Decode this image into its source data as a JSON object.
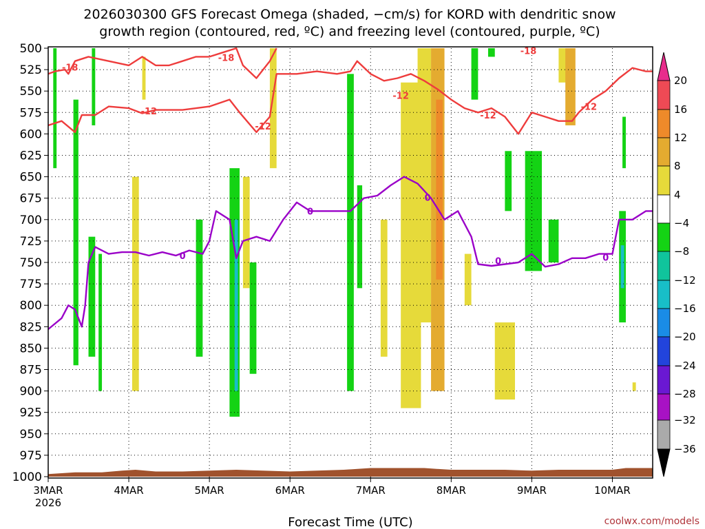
{
  "title_line1": "2026030300 GFS Forecast Omega (shaded, −cm/s) for KORD with dendritic snow",
  "title_line2": "growth region (contoured, red, ºC) and freezing level (contoured, purple, ºC)",
  "credit": "coolwx.com/models",
  "chart_data": {
    "type": "heatmap",
    "title": "2026030300 GFS Forecast Omega (shaded, −cm/s) for KORD with dendritic snow growth region (contoured, red, ºC) and freezing level (contoured, purple, ºC)",
    "xlabel": "Forecast Time (UTC)",
    "ylabel": "",
    "x_range_hours": [
      0,
      180
    ],
    "x_ticks": [
      {
        "hour": 0,
        "label": "3MAR",
        "sublabel": "2026"
      },
      {
        "hour": 24,
        "label": "4MAR"
      },
      {
        "hour": 48,
        "label": "5MAR"
      },
      {
        "hour": 72,
        "label": "6MAR"
      },
      {
        "hour": 96,
        "label": "7MAR"
      },
      {
        "hour": 120,
        "label": "8MAR"
      },
      {
        "hour": 144,
        "label": "9MAR"
      },
      {
        "hour": 168,
        "label": "10MAR"
      }
    ],
    "y_axis": "pressure (hPa), inverted",
    "ylim": [
      1000,
      500
    ],
    "y_ticks": [
      "500",
      "525",
      "550",
      "575",
      "600",
      "625",
      "650",
      "675",
      "700",
      "725",
      "750",
      "775",
      "800",
      "825",
      "850",
      "875",
      "900",
      "925",
      "950",
      "975",
      "1000"
    ],
    "grid": "dotted",
    "colorbar": {
      "labels": [
        "20",
        "16",
        "12",
        "8",
        "4",
        "−4",
        "−8",
        "−12",
        "−16",
        "−20",
        "−24",
        "−28",
        "−32",
        "−36"
      ],
      "colors": {
        "16_20": "#ee4a55",
        "12_16": "#ee8a2a",
        "8_12": "#e4ab30",
        "4_8": "#e6da3a",
        "neutral": "#ffffff",
        "m8_m4": "#14d314",
        "m12_m8": "#10c49c",
        "m16_m12": "#18bec8",
        "m20_m16": "#1a8ce6",
        "m24_m20": "#2244dc",
        "m28_m24": "#6a18d2",
        "m32_m28": "#a812c4",
        "m36_m32": "#aaaaaa"
      }
    },
    "shaded_regions": [
      {
        "hour_start": 1.5,
        "hour_end": 2.5,
        "p_top": 500,
        "p_bottom": 640,
        "value": -6
      },
      {
        "hour_start": 7.5,
        "hour_end": 9,
        "p_top": 560,
        "p_bottom": 870,
        "value": -6
      },
      {
        "hour_start": 12,
        "hour_end": 14,
        "p_top": 720,
        "p_bottom": 860,
        "value": -6
      },
      {
        "hour_start": 15,
        "hour_end": 16,
        "p_top": 740,
        "p_bottom": 900,
        "value": -6
      },
      {
        "hour_start": 13,
        "hour_end": 14,
        "p_top": 500,
        "p_bottom": 590,
        "value": -6
      },
      {
        "hour_start": 25,
        "hour_end": 27,
        "p_top": 650,
        "p_bottom": 900,
        "value": 5
      },
      {
        "hour_start": 28,
        "hour_end": 29,
        "p_top": 510,
        "p_bottom": 560,
        "value": 5
      },
      {
        "hour_start": 44,
        "hour_end": 46,
        "p_top": 700,
        "p_bottom": 860,
        "value": -6
      },
      {
        "hour_start": 54,
        "hour_end": 57,
        "p_top": 640,
        "p_bottom": 930,
        "value": -6
      },
      {
        "hour_start": 55.5,
        "hour_end": 56.5,
        "p_top": 700,
        "p_bottom": 900,
        "value": -14
      },
      {
        "hour_start": 58,
        "hour_end": 60,
        "p_top": 650,
        "p_bottom": 780,
        "value": 5
      },
      {
        "hour_start": 60,
        "hour_end": 62,
        "p_top": 750,
        "p_bottom": 880,
        "value": -6
      },
      {
        "hour_start": 66,
        "hour_end": 68,
        "p_top": 500,
        "p_bottom": 640,
        "value": 5
      },
      {
        "hour_start": 89,
        "hour_end": 91,
        "p_top": 530,
        "p_bottom": 900,
        "value": -6
      },
      {
        "hour_start": 92,
        "hour_end": 93.5,
        "p_top": 660,
        "p_bottom": 780,
        "value": -6
      },
      {
        "hour_start": 99,
        "hour_end": 101,
        "p_top": 700,
        "p_bottom": 860,
        "value": 5
      },
      {
        "hour_start": 105,
        "hour_end": 111,
        "p_top": 540,
        "p_bottom": 920,
        "value": 6
      },
      {
        "hour_start": 110,
        "hour_end": 114,
        "p_top": 500,
        "p_bottom": 820,
        "value": 6
      },
      {
        "hour_start": 114,
        "hour_end": 118,
        "p_top": 500,
        "p_bottom": 900,
        "value": 10
      },
      {
        "hour_start": 115.5,
        "hour_end": 117.5,
        "p_top": 560,
        "p_bottom": 770,
        "value": 13
      },
      {
        "hour_start": 126,
        "hour_end": 128,
        "p_top": 500,
        "p_bottom": 560,
        "value": -6
      },
      {
        "hour_start": 131,
        "hour_end": 133,
        "p_top": 500,
        "p_bottom": 510,
        "value": -6
      },
      {
        "hour_start": 136,
        "hour_end": 138,
        "p_top": 620,
        "p_bottom": 690,
        "value": -6
      },
      {
        "hour_start": 142,
        "hour_end": 147,
        "p_top": 620,
        "p_bottom": 760,
        "value": -6
      },
      {
        "hour_start": 149,
        "hour_end": 152,
        "p_top": 700,
        "p_bottom": 750,
        "value": -6
      },
      {
        "hour_start": 133,
        "hour_end": 139,
        "p_top": 820,
        "p_bottom": 910,
        "value": 5
      },
      {
        "hour_start": 124,
        "hour_end": 126,
        "p_top": 740,
        "p_bottom": 800,
        "value": 5
      },
      {
        "hour_start": 152,
        "hour_end": 156,
        "p_top": 500,
        "p_bottom": 540,
        "value": 6
      },
      {
        "hour_start": 154,
        "hour_end": 157,
        "p_top": 500,
        "p_bottom": 590,
        "value": 10
      },
      {
        "hour_start": 170,
        "hour_end": 172,
        "p_top": 690,
        "p_bottom": 820,
        "value": -6
      },
      {
        "hour_start": 170.5,
        "hour_end": 171.5,
        "p_top": 730,
        "p_bottom": 780,
        "value": -14
      },
      {
        "hour_start": 171,
        "hour_end": 172,
        "p_top": 580,
        "p_bottom": 640,
        "value": -6
      },
      {
        "hour_start": 174,
        "hour_end": 175,
        "p_top": 890,
        "p_bottom": 900,
        "value": 5
      }
    ],
    "contours": [
      {
        "name": "-18",
        "color": "#ee3c3c",
        "points": [
          [
            0,
            530
          ],
          [
            2,
            527
          ],
          [
            5,
            525
          ],
          [
            6,
            530
          ],
          [
            8,
            515
          ],
          [
            12,
            510
          ],
          [
            18,
            515
          ],
          [
            24,
            520
          ],
          [
            28,
            510
          ],
          [
            32,
            520
          ],
          [
            36,
            520
          ],
          [
            40,
            515
          ],
          [
            44,
            510
          ],
          [
            48,
            510
          ],
          [
            52,
            505
          ],
          [
            56,
            500
          ],
          [
            58,
            520
          ],
          [
            62,
            535
          ],
          [
            66,
            515
          ],
          [
            68,
            500
          ]
        ]
      },
      {
        "name": "-12",
        "color": "#ee3c3c",
        "points": [
          [
            0,
            590
          ],
          [
            4,
            585
          ],
          [
            8,
            598
          ],
          [
            10,
            578
          ],
          [
            14,
            578
          ],
          [
            18,
            568
          ],
          [
            24,
            570
          ],
          [
            28,
            576
          ],
          [
            32,
            572
          ],
          [
            40,
            572
          ],
          [
            44,
            570
          ],
          [
            48,
            568
          ],
          [
            54,
            560
          ],
          [
            57,
            575
          ],
          [
            62,
            598
          ],
          [
            66,
            580
          ],
          [
            68,
            530
          ],
          [
            74,
            530
          ],
          [
            80,
            527
          ],
          [
            86,
            530
          ],
          [
            90,
            527
          ],
          [
            92,
            515
          ],
          [
            96,
            530
          ],
          [
            100,
            538
          ],
          [
            104,
            535
          ],
          [
            108,
            530
          ],
          [
            112,
            538
          ],
          [
            116,
            548
          ],
          [
            120,
            560
          ],
          [
            124,
            570
          ],
          [
            128,
            575
          ],
          [
            132,
            570
          ],
          [
            136,
            580
          ],
          [
            140,
            600
          ],
          [
            144,
            575
          ],
          [
            148,
            580
          ],
          [
            152,
            585
          ],
          [
            156,
            585
          ],
          [
            158,
            575
          ],
          [
            162,
            560
          ],
          [
            166,
            550
          ],
          [
            170,
            535
          ],
          [
            174,
            523
          ],
          [
            178,
            527
          ],
          [
            180,
            527
          ]
        ]
      },
      {
        "name": "0",
        "color": "#9a00c8",
        "points": [
          [
            0,
            828
          ],
          [
            4,
            815
          ],
          [
            6,
            800
          ],
          [
            8,
            805
          ],
          [
            10,
            825
          ],
          [
            11,
            800
          ],
          [
            12,
            750
          ],
          [
            14,
            732
          ],
          [
            18,
            740
          ],
          [
            22,
            738
          ],
          [
            26,
            738
          ],
          [
            30,
            742
          ],
          [
            34,
            738
          ],
          [
            38,
            742
          ],
          [
            42,
            736
          ],
          [
            46,
            740
          ],
          [
            48,
            725
          ],
          [
            50,
            690
          ],
          [
            54,
            700
          ],
          [
            56,
            745
          ],
          [
            58,
            725
          ],
          [
            62,
            720
          ],
          [
            66,
            725
          ],
          [
            70,
            700
          ],
          [
            74,
            680
          ],
          [
            78,
            690
          ],
          [
            82,
            690
          ],
          [
            86,
            690
          ],
          [
            90,
            690
          ],
          [
            94,
            675
          ],
          [
            98,
            672
          ],
          [
            102,
            660
          ],
          [
            106,
            650
          ],
          [
            110,
            658
          ],
          [
            114,
            675
          ],
          [
            118,
            700
          ],
          [
            122,
            690
          ],
          [
            126,
            720
          ],
          [
            128,
            752
          ],
          [
            132,
            754
          ],
          [
            136,
            752
          ],
          [
            140,
            750
          ],
          [
            144,
            740
          ],
          [
            148,
            755
          ],
          [
            152,
            752
          ],
          [
            156,
            745
          ],
          [
            160,
            745
          ],
          [
            164,
            740
          ],
          [
            168,
            740
          ],
          [
            170,
            700
          ],
          [
            174,
            700
          ],
          [
            178,
            690
          ],
          [
            180,
            690
          ]
        ]
      }
    ],
    "contour_labels": [
      {
        "text": "-18",
        "hour": 6.5,
        "p": 522,
        "series": "-18"
      },
      {
        "text": "-18",
        "hour": 53,
        "p": 511,
        "series": "-18"
      },
      {
        "text": "-18",
        "hour": 143,
        "p": 503,
        "series": "-18"
      },
      {
        "text": "-12",
        "hour": 30,
        "p": 573,
        "series": "-12"
      },
      {
        "text": "-12",
        "hour": 64,
        "p": 591,
        "series": "-12"
      },
      {
        "text": "-12",
        "hour": 105,
        "p": 555,
        "series": "-12"
      },
      {
        "text": "-12",
        "hour": 131,
        "p": 578,
        "series": "-12"
      },
      {
        "text": "-12",
        "hour": 161,
        "p": 568,
        "series": "-12"
      },
      {
        "text": "0",
        "hour": 40,
        "p": 742,
        "series": "0"
      },
      {
        "text": "0",
        "hour": 78,
        "p": 690,
        "series": "0"
      },
      {
        "text": "0",
        "hour": 113,
        "p": 674,
        "series": "0"
      },
      {
        "text": "0",
        "hour": 134,
        "p": 748,
        "series": "0"
      },
      {
        "text": "0",
        "hour": 166,
        "p": 744,
        "series": "0"
      }
    ],
    "terrain_color": "#a0522d",
    "terrain": [
      [
        0,
        997
      ],
      [
        8,
        995
      ],
      [
        16,
        995
      ],
      [
        22,
        993
      ],
      [
        26,
        992
      ],
      [
        32,
        994
      ],
      [
        40,
        994
      ],
      [
        48,
        993
      ],
      [
        56,
        992
      ],
      [
        64,
        993
      ],
      [
        72,
        994
      ],
      [
        80,
        993
      ],
      [
        88,
        992
      ],
      [
        96,
        990
      ],
      [
        104,
        990
      ],
      [
        112,
        990
      ],
      [
        120,
        992
      ],
      [
        128,
        992
      ],
      [
        136,
        992
      ],
      [
        144,
        993
      ],
      [
        152,
        992
      ],
      [
        160,
        992
      ],
      [
        168,
        992
      ],
      [
        172,
        990
      ],
      [
        176,
        990
      ],
      [
        180,
        990
      ]
    ]
  }
}
